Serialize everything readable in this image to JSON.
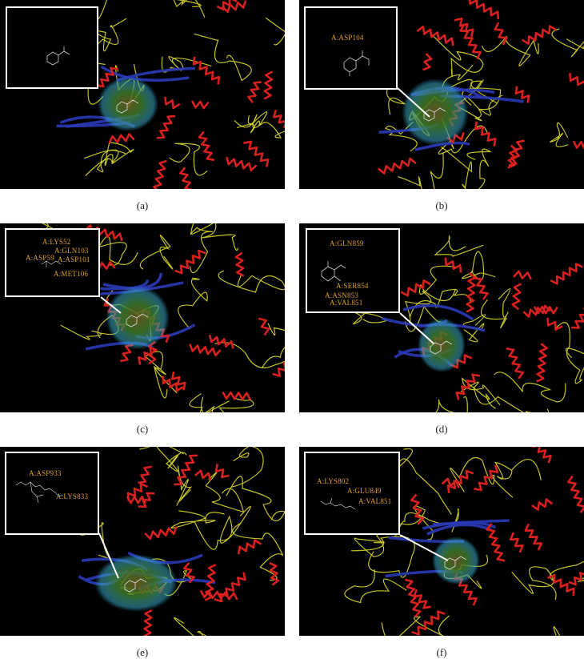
{
  "panels": [
    {
      "id": "a",
      "caption": "(a)",
      "residues": []
    },
    {
      "id": "b",
      "caption": "(b)",
      "residues": [
        "A:ASP104"
      ]
    },
    {
      "id": "c",
      "caption": "(c)",
      "residues": [
        "A:LYS52",
        "A:GLN103",
        "A:ASP59",
        "A:ASP101",
        "A:MET106"
      ]
    },
    {
      "id": "d",
      "caption": "(d)",
      "residues": [
        "A:GLN859",
        "A:SER854",
        "A:ASN853",
        "A:VAL851"
      ]
    },
    {
      "id": "e",
      "caption": "(e)",
      "residues": [
        "A:ASP933",
        "A:LYS833"
      ]
    },
    {
      "id": "f",
      "caption": "(f)",
      "residues": [
        "A:LYS802",
        "A:GLU849",
        "A:VAL851"
      ]
    }
  ],
  "colors": {
    "background": "#000000",
    "helix": "#d8201f",
    "coil": "#d9d82a",
    "strand": "#2a3ab8",
    "surface_green": "#3d7a2a",
    "surface_cyan": "#3aa6c8",
    "label": "#e0a02a",
    "inset_border": "#ffffff"
  }
}
